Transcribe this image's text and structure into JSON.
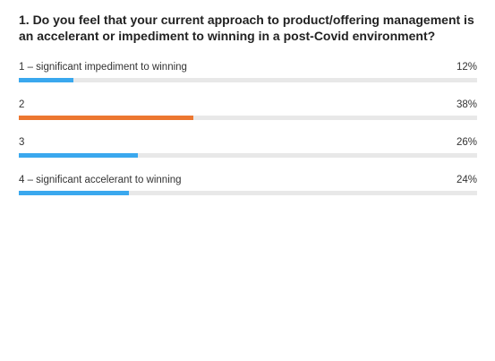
{
  "question": {
    "text": "1. Do you feel that your current approach to product/offering management is an accelerant or impediment to winning in a post-Covid environment?"
  },
  "colors": {
    "default_bar": "#3aa8ee",
    "highlight_bar": "#ec7730",
    "track": "#e8e8e8"
  },
  "chart_data": {
    "type": "bar",
    "orientation": "horizontal",
    "categories": [
      "1 – significant impediment to winning",
      "2",
      "3",
      "4 – significant accelerant to winning"
    ],
    "values": [
      12,
      38,
      26,
      24
    ],
    "value_labels": [
      "12%",
      "38%",
      "26%",
      "24%"
    ],
    "unit": "%",
    "xlim": [
      0,
      100
    ],
    "highlight_index": 1,
    "grid": false
  }
}
